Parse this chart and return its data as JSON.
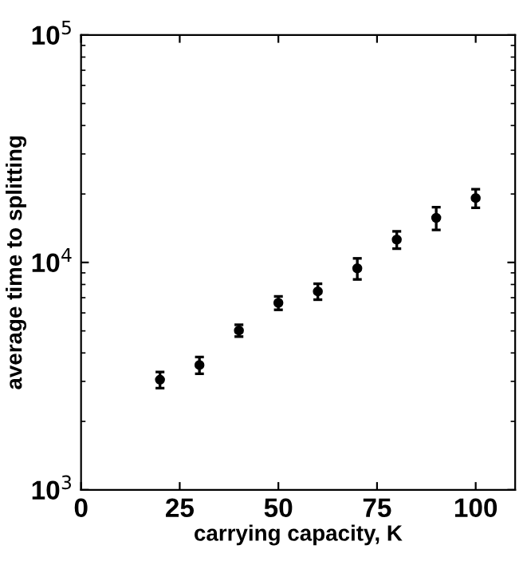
{
  "chart_data": {
    "type": "scatter",
    "xlabel": "carrying capacity, K",
    "ylabel": "average time to splitting",
    "x": [
      20,
      30,
      40,
      50,
      60,
      70,
      80,
      90,
      100
    ],
    "values": [
      3050,
      3540,
      5020,
      6640,
      7460,
      9420,
      12600,
      15700,
      19200
    ],
    "errors": [
      250,
      300,
      300,
      450,
      600,
      1000,
      1100,
      1800,
      1800
    ],
    "color": "#000000",
    "marker": "circle",
    "log": "y",
    "grid": false,
    "xlim": [
      0,
      110
    ],
    "xticks": [
      0,
      25,
      50,
      75,
      100
    ],
    "ylim": [
      1000,
      100000
    ],
    "yticks": [
      {
        "value": 1000,
        "label": "10$^{3}$"
      },
      {
        "value": 10000,
        "label": "10$^{4}$"
      },
      {
        "value": 100000,
        "label": "10$^{5}$"
      }
    ]
  }
}
